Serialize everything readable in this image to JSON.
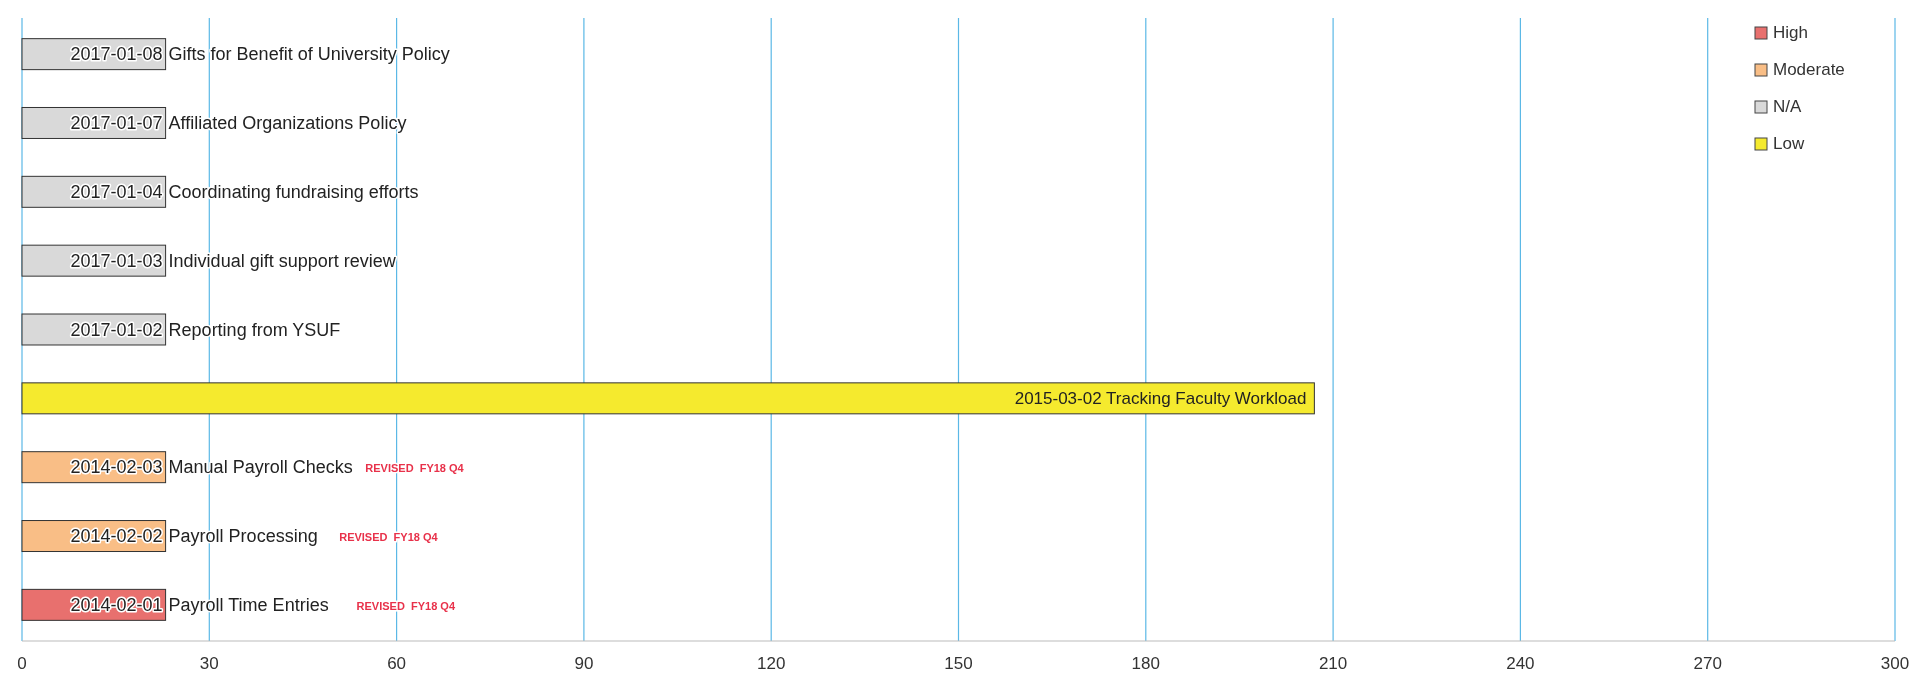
{
  "chart_data": {
    "type": "bar",
    "orientation": "horizontal",
    "stacked": true,
    "categories": [
      "2017-01-08 Gifts for Benefit of University Policy",
      "2017-01-07 Affiliated Organizations Policy",
      "2017-01-04 Coordinating fundraising efforts",
      "2017-01-03 Individual gift support review",
      "2017-01-02 Reporting from YSUF",
      "2015-03-02 Tracking Faculty Workload",
      "2014-02-03 Manual Payroll Checks",
      "2014-02-02 Payroll Processing",
      "2014-02-01 Payroll Time Entries"
    ],
    "series": [
      {
        "name": "High",
        "color": "#e8706e",
        "values": [
          null,
          null,
          null,
          null,
          null,
          null,
          null,
          null,
          23
        ]
      },
      {
        "name": "Moderate",
        "color": "#f9be86",
        "values": [
          null,
          null,
          null,
          null,
          null,
          null,
          23,
          23,
          null
        ]
      },
      {
        "name": "N/A",
        "color": "#d9d9d9",
        "values": [
          23,
          23,
          23,
          23,
          23,
          null,
          null,
          null,
          null
        ]
      },
      {
        "name": "Low",
        "color": "#f5ea2e",
        "values": [
          null,
          null,
          null,
          null,
          null,
          207,
          null,
          null,
          null
        ]
      }
    ],
    "xlim": [
      0,
      300
    ],
    "xticks": [
      0,
      30,
      60,
      90,
      120,
      150,
      180,
      210,
      240,
      270,
      300
    ],
    "grid": "x",
    "legend": "top right",
    "annotations": [
      "REVISED  FY18 Q4",
      "REVISED  FY18 Q4",
      "REVISED  FY18 Q4"
    ]
  }
}
